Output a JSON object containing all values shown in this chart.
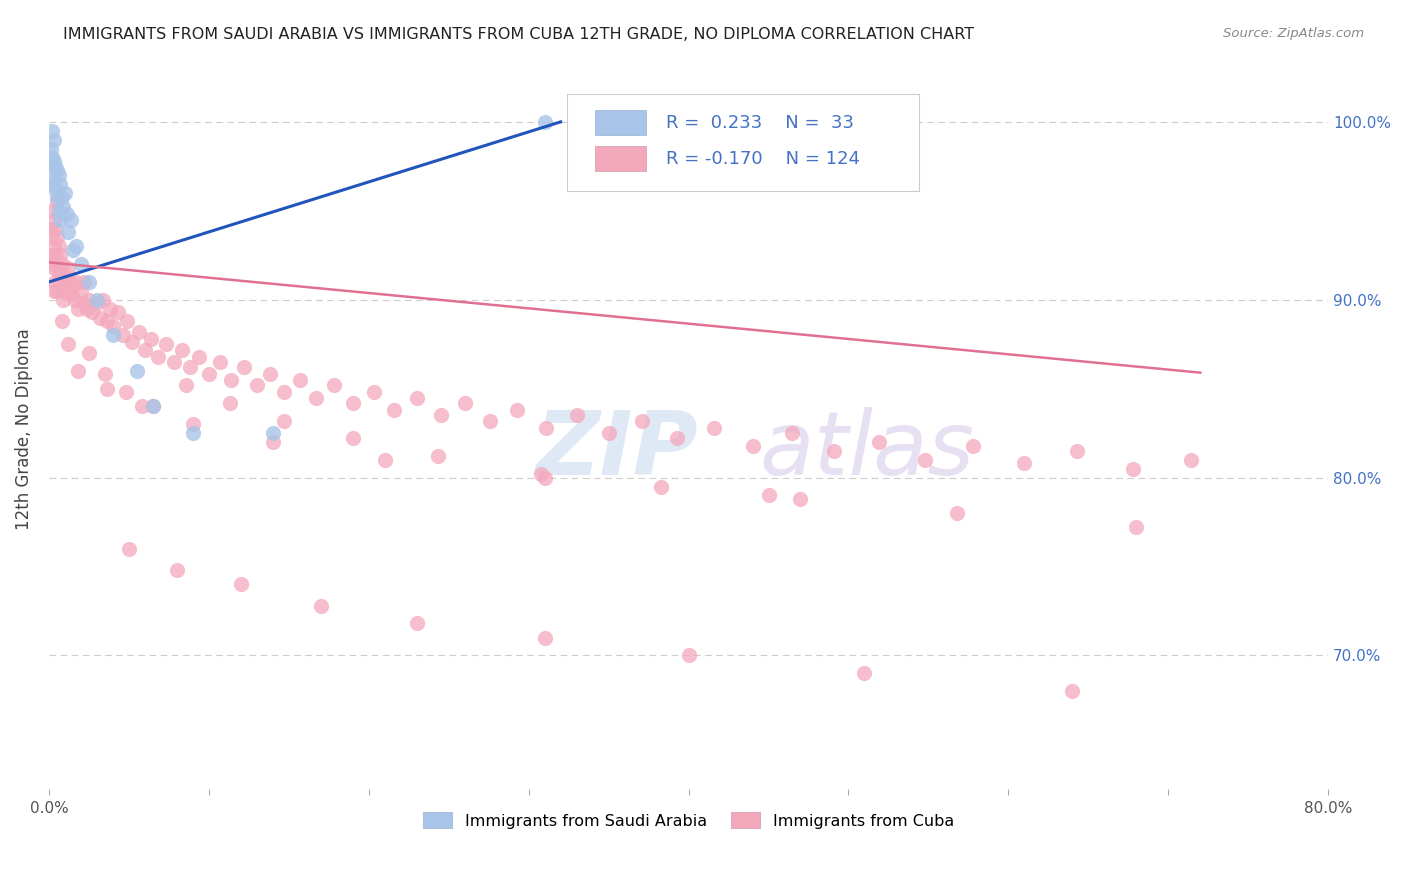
{
  "title": "IMMIGRANTS FROM SAUDI ARABIA VS IMMIGRANTS FROM CUBA 12TH GRADE, NO DIPLOMA CORRELATION CHART",
  "source": "Source: ZipAtlas.com",
  "ylabel": "12th Grade, No Diploma",
  "xlim": [
    0.0,
    0.8
  ],
  "ylim": [
    0.625,
    1.03
  ],
  "saudi_color": "#a8c4e8",
  "saudi_line_color": "#2255bb",
  "cuba_color": "#f4a8bc",
  "cuba_line_color": "#e07090",
  "legend_R_saudi": "0.233",
  "legend_N_saudi": "33",
  "legend_R_cuba": "-0.170",
  "legend_N_cuba": "124",
  "legend_text_color": "#4472c4",
  "watermark_zip": "ZIP",
  "watermark_atlas": "atlas",
  "watermark_color_zip": "#c8d8ec",
  "watermark_color_atlas": "#d8c8e8",
  "background_color": "#ffffff",
  "grid_color": "#cccccc",
  "right_tick_color": "#4472c4",
  "saudi_x": [
    0.001,
    0.001,
    0.002,
    0.002,
    0.002,
    0.003,
    0.003,
    0.003,
    0.004,
    0.004,
    0.005,
    0.005,
    0.006,
    0.006,
    0.007,
    0.007,
    0.008,
    0.009,
    0.01,
    0.011,
    0.012,
    0.014,
    0.015,
    0.017,
    0.02,
    0.025,
    0.03,
    0.04,
    0.055,
    0.065,
    0.09,
    0.14,
    0.31
  ],
  "saudi_y": [
    0.985,
    0.975,
    0.995,
    0.98,
    0.965,
    0.99,
    0.978,
    0.968,
    0.975,
    0.962,
    0.973,
    0.958,
    0.97,
    0.95,
    0.965,
    0.945,
    0.958,
    0.952,
    0.96,
    0.948,
    0.938,
    0.945,
    0.928,
    0.93,
    0.92,
    0.91,
    0.9,
    0.88,
    0.86,
    0.84,
    0.825,
    0.825,
    1.0
  ],
  "cuba_x": [
    0.001,
    0.001,
    0.002,
    0.002,
    0.002,
    0.003,
    0.003,
    0.003,
    0.003,
    0.004,
    0.004,
    0.004,
    0.005,
    0.005,
    0.005,
    0.006,
    0.006,
    0.007,
    0.007,
    0.008,
    0.008,
    0.009,
    0.009,
    0.01,
    0.011,
    0.012,
    0.013,
    0.014,
    0.015,
    0.016,
    0.017,
    0.018,
    0.02,
    0.021,
    0.022,
    0.024,
    0.025,
    0.027,
    0.03,
    0.032,
    0.034,
    0.036,
    0.038,
    0.04,
    0.043,
    0.046,
    0.049,
    0.052,
    0.056,
    0.06,
    0.064,
    0.068,
    0.073,
    0.078,
    0.083,
    0.088,
    0.094,
    0.1,
    0.107,
    0.114,
    0.122,
    0.13,
    0.138,
    0.147,
    0.157,
    0.167,
    0.178,
    0.19,
    0.203,
    0.216,
    0.23,
    0.245,
    0.26,
    0.276,
    0.293,
    0.311,
    0.33,
    0.35,
    0.371,
    0.393,
    0.416,
    0.44,
    0.465,
    0.491,
    0.519,
    0.548,
    0.578,
    0.61,
    0.643,
    0.678,
    0.714,
    0.005,
    0.008,
    0.012,
    0.018,
    0.025,
    0.035,
    0.048,
    0.065,
    0.086,
    0.113,
    0.147,
    0.19,
    0.243,
    0.308,
    0.383,
    0.47,
    0.568,
    0.68,
    0.05,
    0.08,
    0.12,
    0.17,
    0.23,
    0.31,
    0.4,
    0.51,
    0.64,
    0.036,
    0.058,
    0.09,
    0.14,
    0.21,
    0.31,
    0.45
  ],
  "cuba_y": [
    0.94,
    0.925,
    0.95,
    0.935,
    0.92,
    0.945,
    0.93,
    0.918,
    0.905,
    0.94,
    0.925,
    0.91,
    0.935,
    0.92,
    0.905,
    0.93,
    0.915,
    0.925,
    0.91,
    0.92,
    0.905,
    0.915,
    0.9,
    0.912,
    0.905,
    0.918,
    0.91,
    0.903,
    0.908,
    0.9,
    0.91,
    0.895,
    0.905,
    0.898,
    0.91,
    0.895,
    0.9,
    0.893,
    0.898,
    0.89,
    0.9,
    0.888,
    0.895,
    0.885,
    0.893,
    0.88,
    0.888,
    0.876,
    0.882,
    0.872,
    0.878,
    0.868,
    0.875,
    0.865,
    0.872,
    0.862,
    0.868,
    0.858,
    0.865,
    0.855,
    0.862,
    0.852,
    0.858,
    0.848,
    0.855,
    0.845,
    0.852,
    0.842,
    0.848,
    0.838,
    0.845,
    0.835,
    0.842,
    0.832,
    0.838,
    0.828,
    0.835,
    0.825,
    0.832,
    0.822,
    0.828,
    0.818,
    0.825,
    0.815,
    0.82,
    0.81,
    0.818,
    0.808,
    0.815,
    0.805,
    0.81,
    0.955,
    0.888,
    0.875,
    0.86,
    0.87,
    0.858,
    0.848,
    0.84,
    0.852,
    0.842,
    0.832,
    0.822,
    0.812,
    0.802,
    0.795,
    0.788,
    0.78,
    0.772,
    0.76,
    0.748,
    0.74,
    0.728,
    0.718,
    0.71,
    0.7,
    0.69,
    0.68,
    0.85,
    0.84,
    0.83,
    0.82,
    0.81,
    0.8,
    0.79
  ],
  "cuba_trend_x": [
    0.0,
    0.72
  ],
  "cuba_trend_y": [
    0.921,
    0.859
  ],
  "saudi_trend_x": [
    0.0,
    0.32
  ],
  "saudi_trend_y": [
    0.91,
    1.0
  ]
}
